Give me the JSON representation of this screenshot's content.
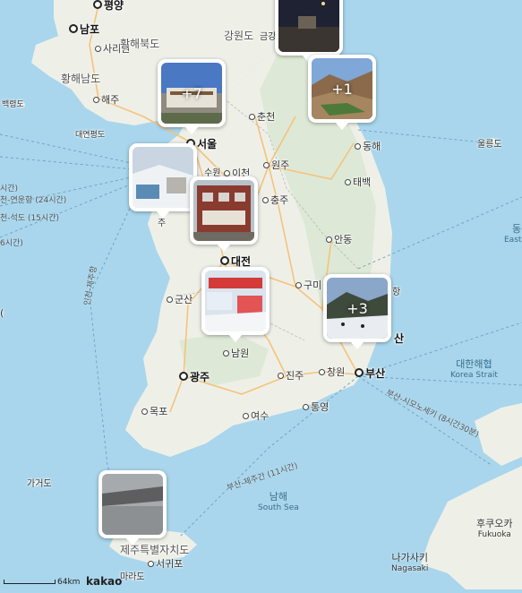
{
  "map": {
    "colors": {
      "sea": "#a9d6ec",
      "land": "#eef0e8",
      "mountain": "#d6e6cf",
      "road": "#f6c27a"
    },
    "cities": [
      {
        "name": "평양",
        "big": true
      },
      {
        "name": "남포",
        "big": true
      },
      {
        "name": "사리원",
        "big": false
      },
      {
        "name": "해주",
        "big": false
      },
      {
        "name": "춘천",
        "big": false
      },
      {
        "name": "서울",
        "big": true
      },
      {
        "name": "수원",
        "big": false
      },
      {
        "name": "이천",
        "big": false
      },
      {
        "name": "원주",
        "big": false
      },
      {
        "name": "충주",
        "big": false
      },
      {
        "name": "동해",
        "big": false
      },
      {
        "name": "태백",
        "big": false
      },
      {
        "name": "안동",
        "big": false
      },
      {
        "name": "대전",
        "big": true
      },
      {
        "name": "구미",
        "big": false
      },
      {
        "name": "군산",
        "big": false
      },
      {
        "name": "남원",
        "big": false
      },
      {
        "name": "광주",
        "big": true
      },
      {
        "name": "진주",
        "big": false
      },
      {
        "name": "창원",
        "big": false
      },
      {
        "name": "부산",
        "big": true
      },
      {
        "name": "통영",
        "big": false
      },
      {
        "name": "목포",
        "big": false
      },
      {
        "name": "여수",
        "big": false
      },
      {
        "name": "서귀포",
        "big": false
      },
      {
        "name": "울릉도",
        "big": false
      }
    ],
    "regions": [
      "강원도",
      "황해북도",
      "황해남도",
      "제주특별자치도"
    ],
    "partial_labels": [
      "금강",
      "백령도",
      "대연평도",
      "산",
      "항",
      "주",
      "동",
      "East S",
      "가거도",
      "마라도",
      "(",
      "시간)",
      "6시간)"
    ],
    "seas": [
      {
        "ko": "대한해협",
        "en": "Korea Strait"
      },
      {
        "ko": "남해",
        "en": "South Sea"
      },
      {
        "ko": "후쿠오카",
        "en": "Fukuoka"
      },
      {
        "ko": "나가사키",
        "en": "Nagasaki"
      }
    ],
    "routes": [
      "천-연운항 (24시간)",
      "천-석도 (15시간)",
      "인천-제주항",
      "부산-제주간 (11시간)",
      "부산-시모노세키 (8시간30분)"
    ]
  },
  "markers": [
    {
      "count": "",
      "scene": "night"
    },
    {
      "count": "+7",
      "scene": "building"
    },
    {
      "count": "+1",
      "scene": "mountain"
    },
    {
      "count": "",
      "scene": "snow"
    },
    {
      "count": "",
      "scene": "brick"
    },
    {
      "count": "",
      "scene": "festival"
    },
    {
      "count": "+3",
      "scene": "winter"
    },
    {
      "count": "",
      "scene": "fog"
    }
  ],
  "scale": {
    "label": "64km"
  },
  "logo": "kakao"
}
